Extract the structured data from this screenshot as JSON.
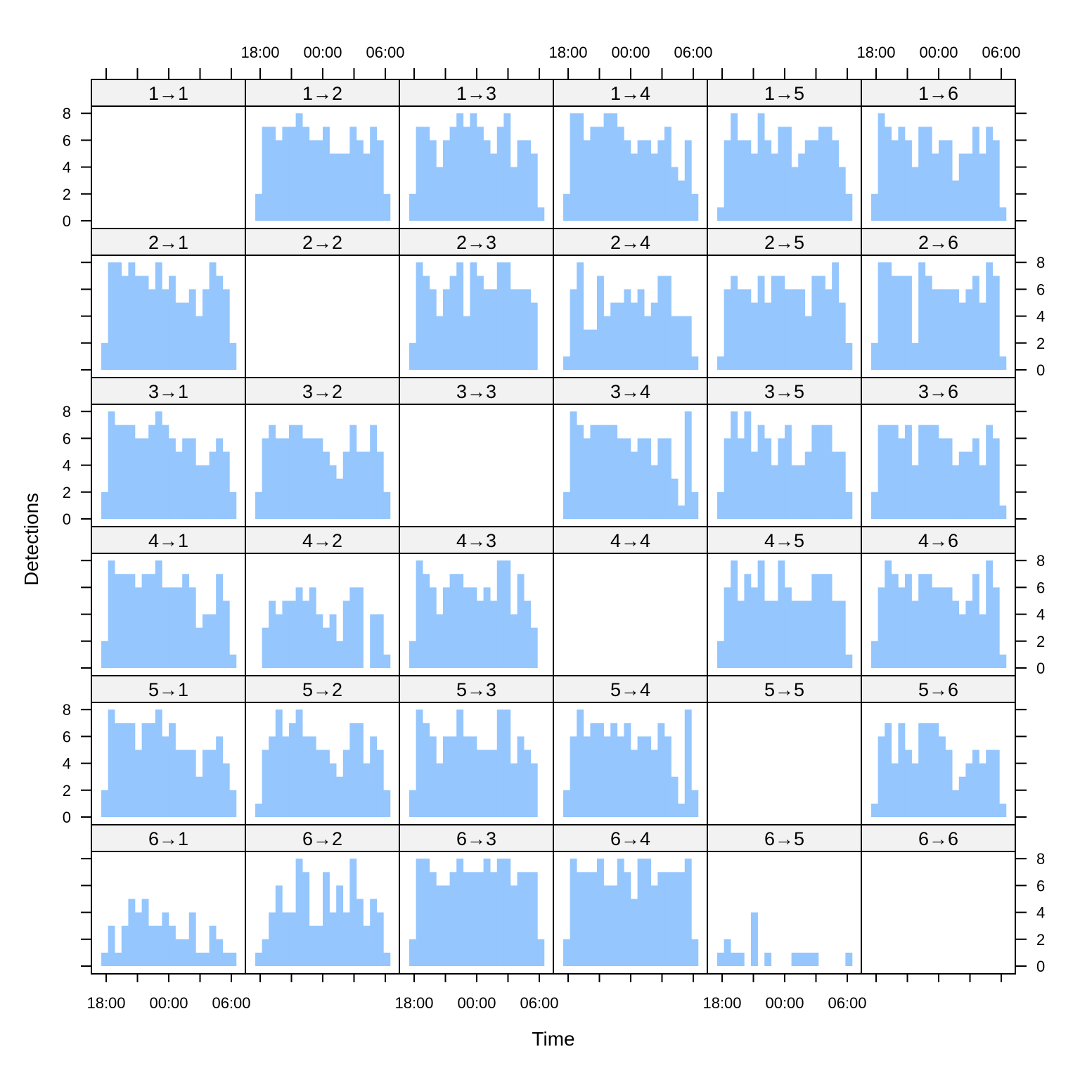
{
  "chart_data": {
    "type": "bar",
    "subtype": "histogram-lattice",
    "title": "",
    "xlabel": "Time",
    "ylabel": "Detections",
    "ylim": [
      0,
      8.6
    ],
    "y_ticks": [
      0,
      2,
      4,
      6,
      8
    ],
    "x_tick_labels": [
      "18:00",
      "00:00",
      "06:00"
    ],
    "x_tick_hours": [
      -6,
      0,
      6
    ],
    "x_minor_tick_hours": [
      -6,
      -3,
      0,
      3,
      6
    ],
    "bin_start_hours_from_midnight": -6.47,
    "bin_width_hours": 0.647,
    "grid": false,
    "layout": "6x6 panels, strip labels from→to",
    "colors": {
      "bar": "#95C6FD",
      "strip": "#F2F2F2",
      "frame": "#000000"
    },
    "panels": [
      {
        "label": "1→1",
        "counts": []
      },
      {
        "label": "1→2",
        "counts": [
          2,
          7,
          7,
          6,
          7,
          7,
          8,
          7,
          6,
          6,
          7,
          5,
          5,
          5,
          7,
          6,
          5,
          7,
          6,
          2
        ]
      },
      {
        "label": "1→3",
        "counts": [
          2,
          7,
          7,
          6,
          4,
          6,
          7,
          8,
          7,
          8,
          7,
          6,
          5,
          7,
          8,
          4,
          6,
          6,
          5,
          1
        ]
      },
      {
        "label": "1→4",
        "counts": [
          2,
          8,
          8,
          6,
          7,
          7,
          8,
          8,
          7,
          6,
          5,
          6,
          6,
          5,
          6,
          7,
          4,
          3,
          6,
          2
        ]
      },
      {
        "label": "1→5",
        "counts": [
          1,
          6,
          8,
          6,
          6,
          5,
          8,
          6,
          5,
          7,
          7,
          4,
          5,
          6,
          6,
          7,
          7,
          6,
          4,
          2
        ]
      },
      {
        "label": "1→6",
        "counts": [
          2,
          8,
          7,
          6,
          7,
          6,
          4,
          7,
          7,
          5,
          6,
          6,
          3,
          5,
          5,
          7,
          5,
          7,
          6,
          1
        ]
      },
      {
        "label": "2→1",
        "counts": [
          2,
          8,
          8,
          7,
          8,
          7,
          7,
          6,
          8,
          6,
          7,
          5,
          5,
          6,
          4,
          6,
          8,
          7,
          6,
          2
        ]
      },
      {
        "label": "2→2",
        "counts": []
      },
      {
        "label": "2→3",
        "counts": [
          2,
          8,
          7,
          6,
          4,
          6,
          7,
          8,
          4,
          8,
          7,
          6,
          6,
          8,
          8,
          6,
          6,
          6,
          5,
          0
        ]
      },
      {
        "label": "2→4",
        "counts": [
          1,
          6,
          8,
          3,
          3,
          7,
          4,
          5,
          5,
          6,
          5,
          6,
          4,
          5,
          7,
          7,
          4,
          4,
          4,
          1
        ]
      },
      {
        "label": "2→5",
        "counts": [
          1,
          6,
          7,
          6,
          6,
          5,
          7,
          5,
          7,
          7,
          6,
          6,
          6,
          4,
          7,
          7,
          6,
          8,
          5,
          2
        ]
      },
      {
        "label": "2→6",
        "counts": [
          2,
          8,
          8,
          7,
          7,
          7,
          2,
          8,
          7,
          6,
          6,
          6,
          6,
          5,
          6,
          7,
          5,
          8,
          7,
          1
        ]
      },
      {
        "label": "3→1",
        "counts": [
          2,
          8,
          7,
          7,
          7,
          6,
          6,
          7,
          8,
          7,
          6,
          5,
          6,
          6,
          4,
          4,
          5,
          6,
          5,
          2
        ]
      },
      {
        "label": "3→2",
        "counts": [
          2,
          6,
          7,
          6,
          6,
          7,
          7,
          6,
          6,
          6,
          5,
          4,
          3,
          5,
          7,
          5,
          5,
          7,
          5,
          2
        ]
      },
      {
        "label": "3→3",
        "counts": []
      },
      {
        "label": "3→4",
        "counts": [
          2,
          8,
          7,
          6,
          7,
          7,
          7,
          7,
          6,
          6,
          5,
          6,
          6,
          4,
          6,
          6,
          3,
          1,
          8,
          2
        ]
      },
      {
        "label": "3→5",
        "counts": [
          2,
          6,
          8,
          6,
          8,
          5,
          7,
          6,
          4,
          6,
          7,
          4,
          4,
          5,
          7,
          7,
          7,
          5,
          5,
          2
        ]
      },
      {
        "label": "3→6",
        "counts": [
          2,
          7,
          7,
          7,
          6,
          7,
          4,
          7,
          7,
          7,
          6,
          6,
          4,
          5,
          5,
          6,
          4,
          7,
          6,
          1
        ]
      },
      {
        "label": "4→1",
        "counts": [
          2,
          8,
          7,
          7,
          7,
          6,
          7,
          7,
          8,
          6,
          6,
          6,
          7,
          6,
          3,
          4,
          4,
          7,
          5,
          1
        ]
      },
      {
        "label": "4→2",
        "counts": [
          0,
          3,
          5,
          4,
          5,
          5,
          6,
          5,
          6,
          4,
          3,
          4,
          2,
          5,
          6,
          6,
          0,
          4,
          4,
          1
        ]
      },
      {
        "label": "4→3",
        "counts": [
          2,
          8,
          7,
          6,
          4,
          6,
          7,
          7,
          6,
          6,
          5,
          6,
          5,
          8,
          8,
          4,
          7,
          5,
          3,
          0
        ]
      },
      {
        "label": "4→4",
        "counts": []
      },
      {
        "label": "4→5",
        "counts": [
          2,
          6,
          8,
          5,
          7,
          6,
          8,
          5,
          5,
          8,
          6,
          5,
          5,
          5,
          7,
          7,
          7,
          5,
          5,
          1
        ]
      },
      {
        "label": "4→6",
        "counts": [
          2,
          6,
          8,
          7,
          6,
          7,
          5,
          7,
          7,
          6,
          6,
          6,
          5,
          4,
          5,
          7,
          4,
          8,
          6,
          1
        ]
      },
      {
        "label": "5→1",
        "counts": [
          2,
          8,
          7,
          7,
          7,
          5,
          7,
          7,
          8,
          6,
          7,
          5,
          5,
          5,
          3,
          5,
          5,
          6,
          4,
          2
        ]
      },
      {
        "label": "5→2",
        "counts": [
          1,
          5,
          6,
          8,
          6,
          7,
          8,
          6,
          6,
          5,
          5,
          4,
          3,
          5,
          7,
          7,
          4,
          6,
          5,
          2
        ]
      },
      {
        "label": "5→3",
        "counts": [
          2,
          8,
          7,
          6,
          4,
          6,
          6,
          8,
          6,
          6,
          5,
          5,
          5,
          8,
          8,
          4,
          6,
          5,
          4,
          0
        ]
      },
      {
        "label": "5→4",
        "counts": [
          2,
          6,
          8,
          6,
          7,
          7,
          6,
          7,
          6,
          7,
          5,
          6,
          6,
          5,
          7,
          6,
          3,
          1,
          8,
          2
        ]
      },
      {
        "label": "5→5",
        "counts": []
      },
      {
        "label": "5→6",
        "counts": [
          1,
          6,
          7,
          4,
          7,
          5,
          4,
          7,
          7,
          7,
          6,
          5,
          2,
          3,
          4,
          5,
          4,
          5,
          5,
          1
        ]
      },
      {
        "label": "6→1",
        "counts": [
          1,
          3,
          1,
          3,
          5,
          4,
          5,
          3,
          3,
          4,
          3,
          2,
          2,
          4,
          1,
          1,
          3,
          2,
          1,
          1
        ]
      },
      {
        "label": "6→2",
        "counts": [
          1,
          2,
          4,
          6,
          4,
          4,
          8,
          7,
          3,
          3,
          7,
          4,
          6,
          4,
          8,
          5,
          3,
          5,
          4,
          1
        ]
      },
      {
        "label": "6→3",
        "counts": [
          2,
          8,
          8,
          7,
          6,
          6,
          7,
          8,
          7,
          7,
          7,
          8,
          7,
          8,
          8,
          6,
          7,
          7,
          7,
          2
        ]
      },
      {
        "label": "6→4",
        "counts": [
          2,
          8,
          7,
          7,
          7,
          8,
          6,
          6,
          8,
          7,
          5,
          8,
          8,
          6,
          7,
          7,
          7,
          7,
          8,
          2
        ]
      },
      {
        "label": "6→5",
        "counts": [
          1,
          2,
          1,
          1,
          0,
          4,
          0,
          1,
          0,
          0,
          0,
          1,
          1,
          1,
          1,
          0,
          0,
          0,
          0,
          1
        ]
      },
      {
        "label": "6→6",
        "counts": []
      }
    ]
  }
}
